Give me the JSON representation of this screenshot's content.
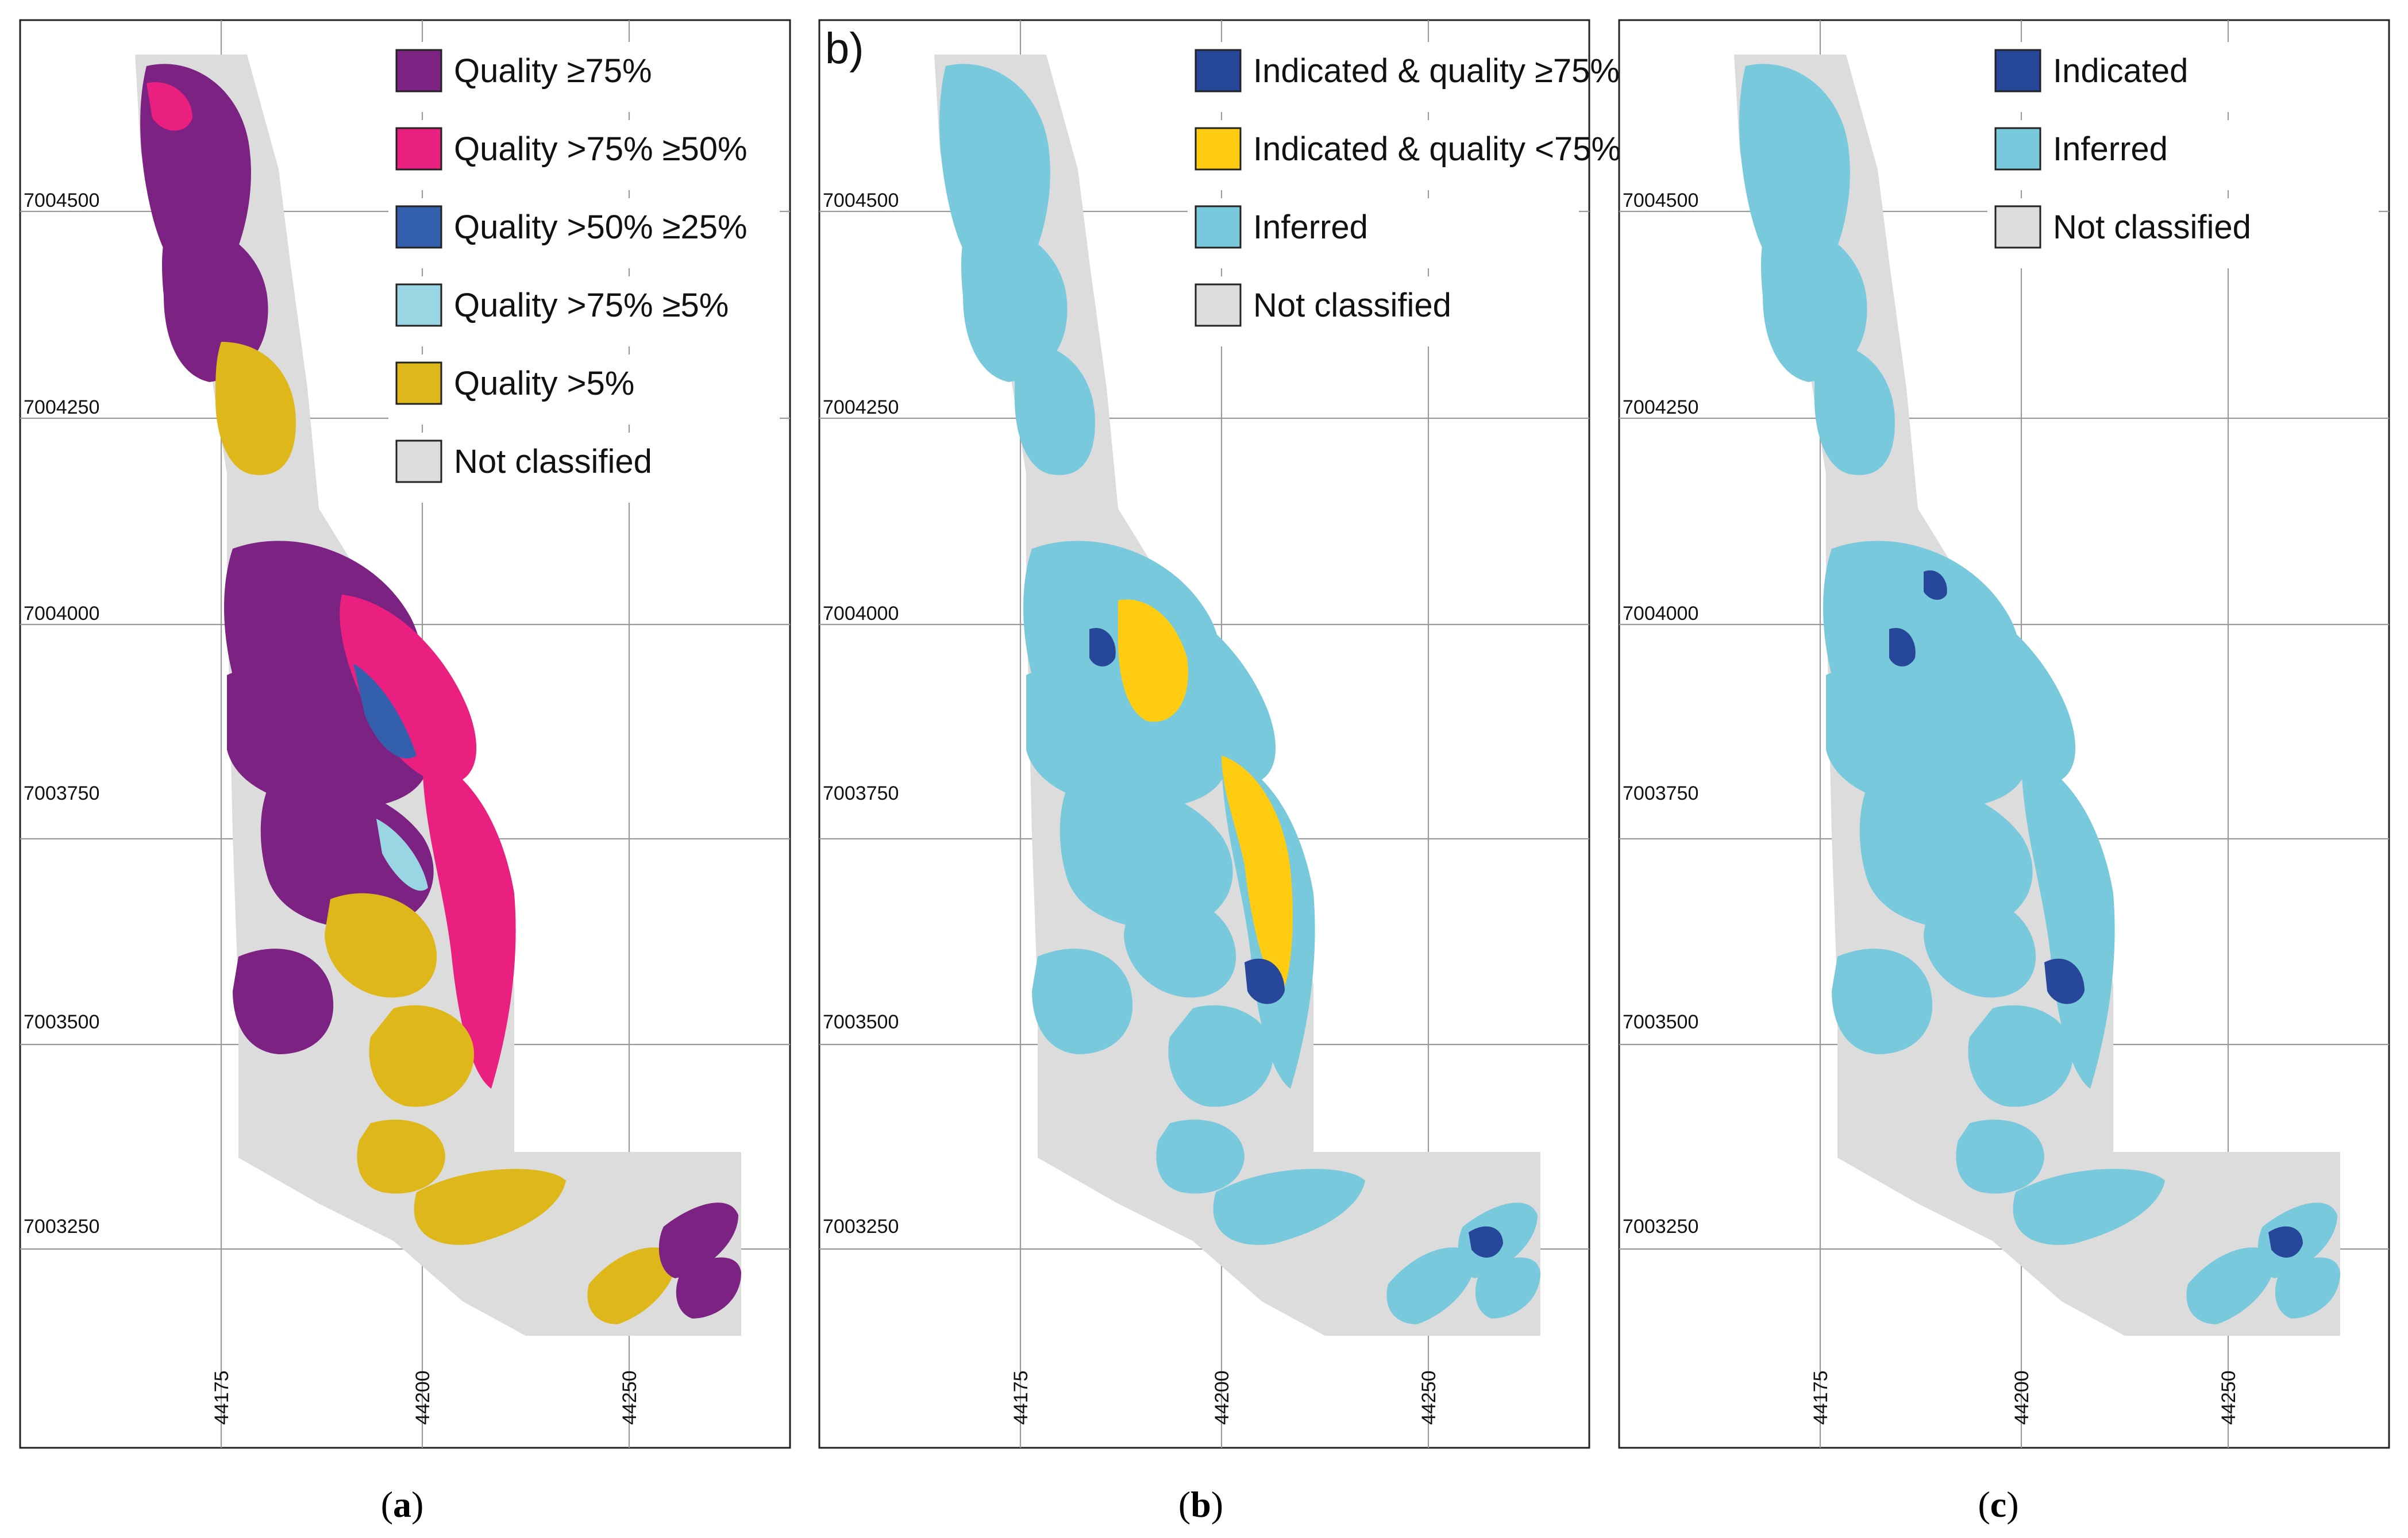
{
  "figure": {
    "panels": [
      {
        "id": "a",
        "caption": "a",
        "panel_tag": "",
        "legend": [
          {
            "label": "Quality ≥75%",
            "color": "#7b2282"
          },
          {
            "label": "Quality >75% ≥50%",
            "color": "#e9207f"
          },
          {
            "label": "Quality >50% ≥25%",
            "color": "#335fac"
          },
          {
            "label": "Quality >75% ≥5%",
            "color": "#99d5e3"
          },
          {
            "label": "Quality >5%",
            "color": "#deb81a"
          },
          {
            "label": "Not classified",
            "color": "#dcdcdc"
          }
        ]
      },
      {
        "id": "b",
        "caption": "b",
        "panel_tag": "b)",
        "legend": [
          {
            "label": "Indicated & quality ≥75%",
            "color": "#27479b"
          },
          {
            "label": "Indicated & quality <75%",
            "color": "#ffcc12"
          },
          {
            "label": "Inferred",
            "color": "#79c9dc"
          },
          {
            "label": "Not classified",
            "color": "#dcdcdc"
          }
        ]
      },
      {
        "id": "c",
        "caption": "c",
        "panel_tag": "",
        "legend": [
          {
            "label": "Indicated",
            "color": "#27479b"
          },
          {
            "label": "Inferred",
            "color": "#79c9dc"
          },
          {
            "label": "Not classified",
            "color": "#dcdcdc"
          }
        ]
      }
    ],
    "northing_labels": [
      "7004500",
      "7004250",
      "7004000",
      "7003750",
      "7003500",
      "7003250"
    ],
    "easting_labels": [
      "44175",
      "44200",
      "44250"
    ],
    "caption_open": "(",
    "caption_close": ")",
    "colors": {
      "not_classified": "#dcdcdc",
      "grid": "#9a9a9a",
      "frame": "#222222"
    }
  }
}
